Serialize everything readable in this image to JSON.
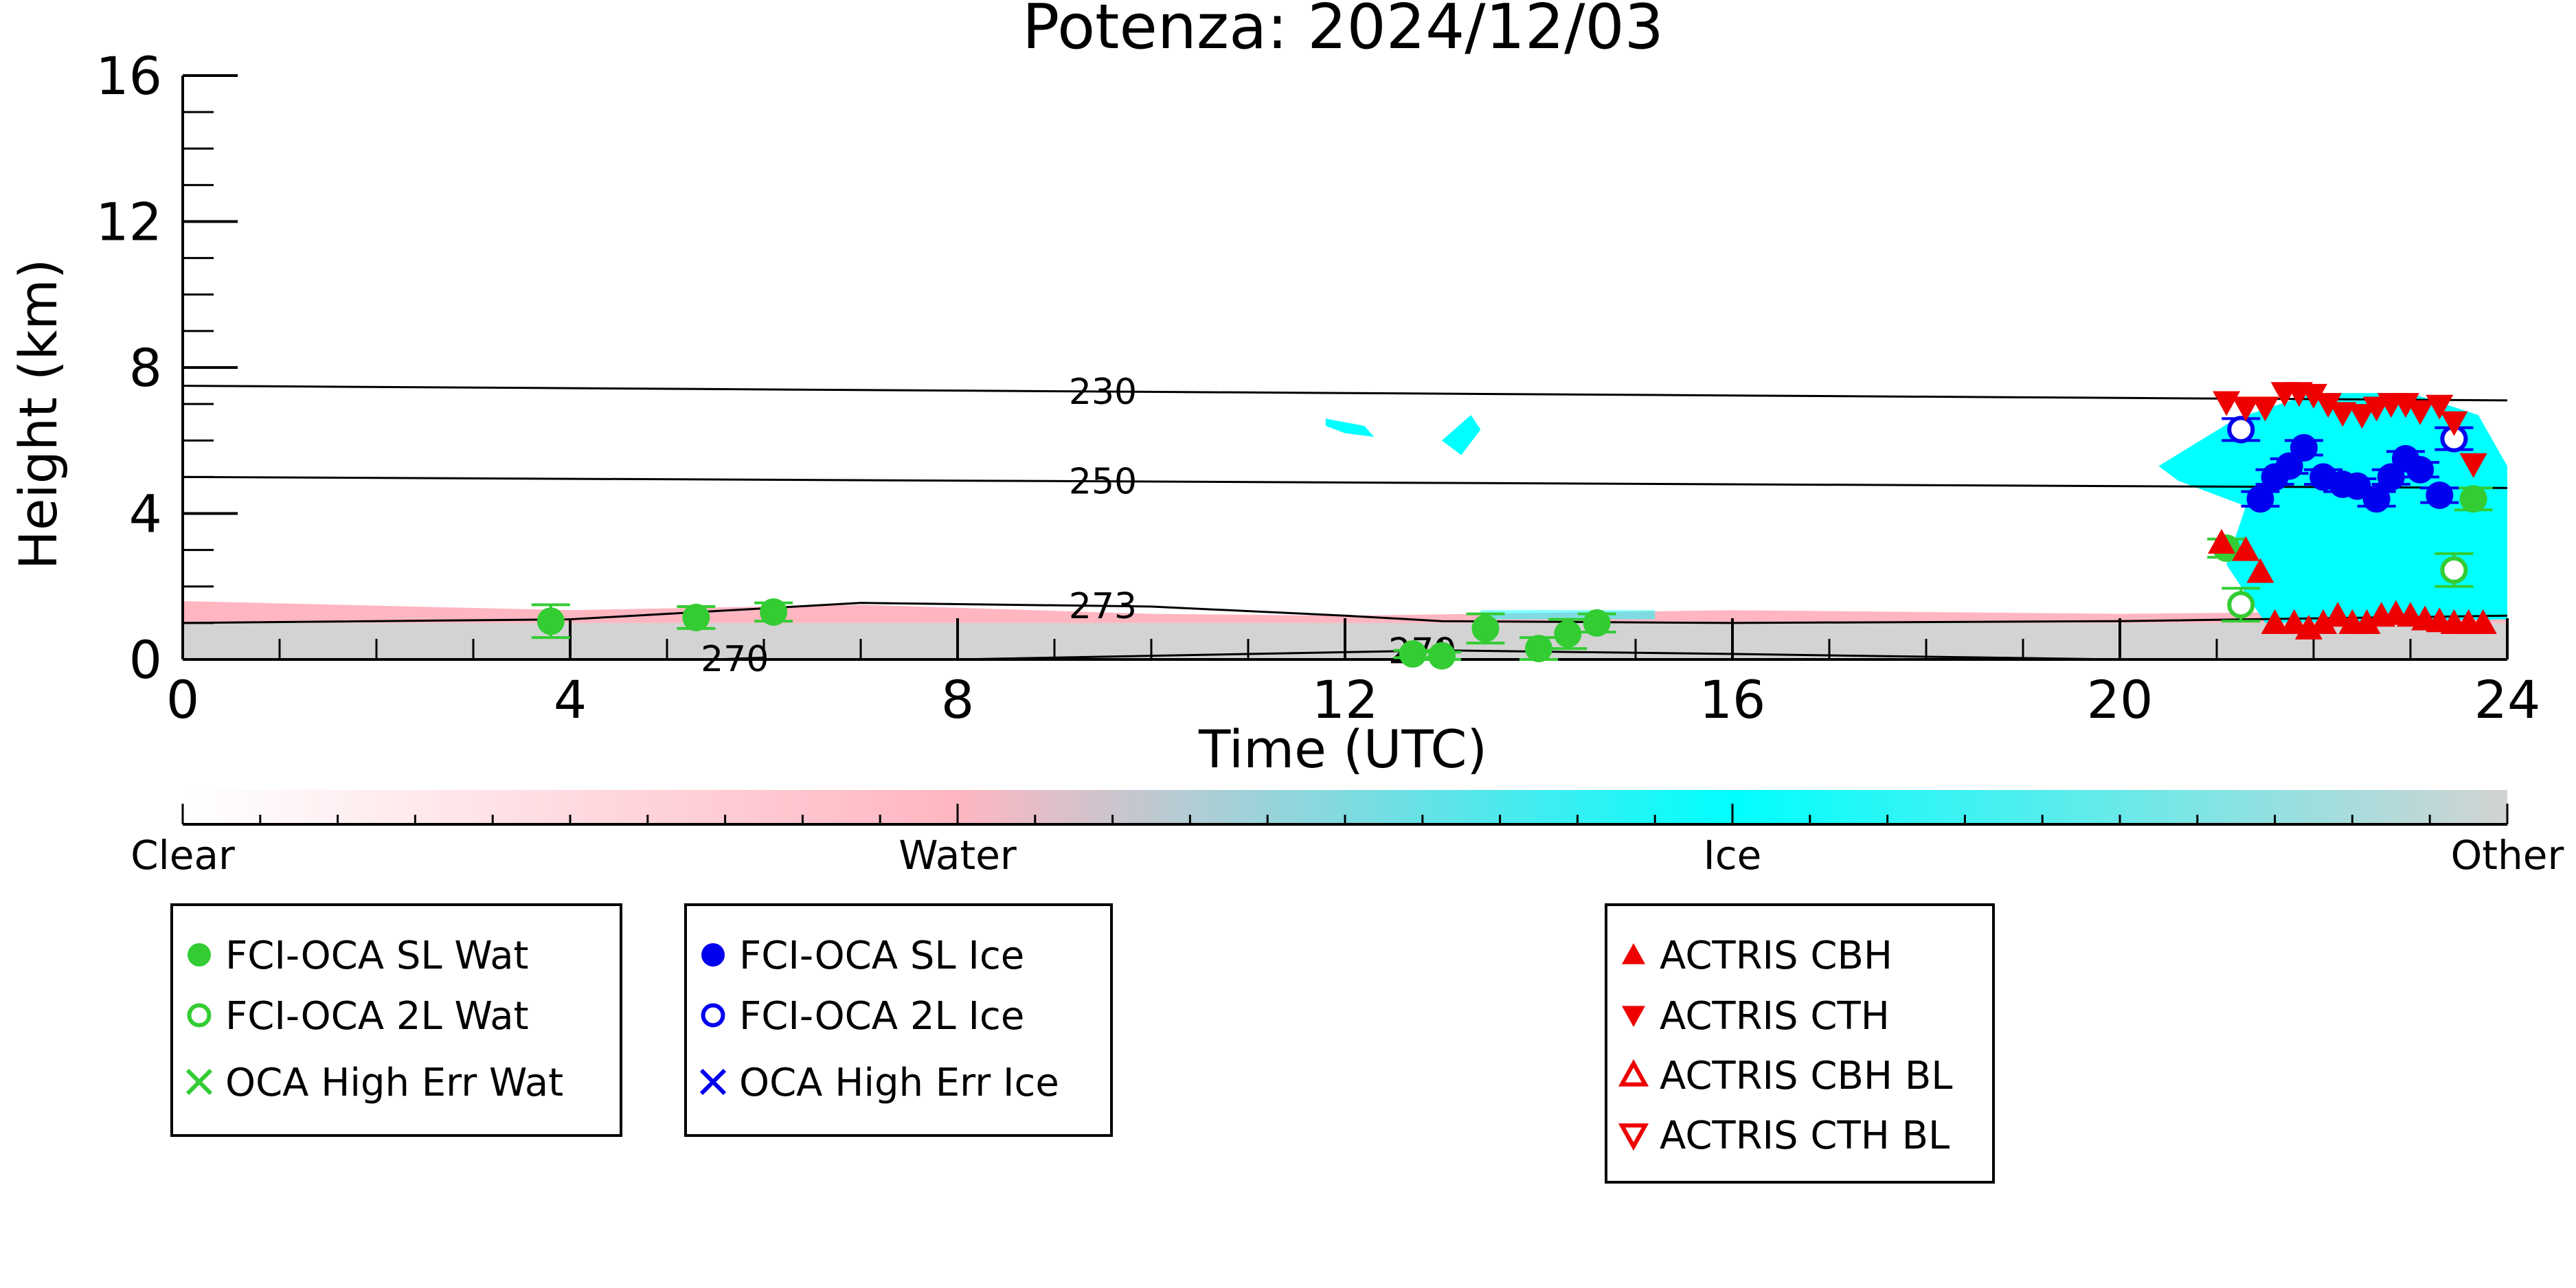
{
  "chart_data": {
    "type": "scatter",
    "title": "Potenza: 2024/12/03",
    "xlabel": "Time (UTC)",
    "ylabel": "Height (km)",
    "xlim": [
      0,
      24
    ],
    "ylim": [
      0,
      16
    ],
    "x_ticks": [
      0,
      4,
      8,
      12,
      16,
      20,
      24
    ],
    "x_tick_labels": [
      "0",
      "4",
      "8",
      "12",
      "16",
      "20",
      "24"
    ],
    "y_ticks": [
      0,
      4,
      8,
      12,
      16
    ],
    "y_tick_labels": [
      "0",
      "4",
      "8",
      "12",
      "16"
    ],
    "isotherms": [
      {
        "label": "230",
        "x": [
          0,
          24
        ],
        "y": [
          7.5,
          7.1
        ],
        "label_x": 9.5
      },
      {
        "label": "250",
        "x": [
          0,
          24
        ],
        "y": [
          5.0,
          4.7
        ],
        "label_x": 9.5
      },
      {
        "label": "273",
        "x": [
          0,
          4,
          7,
          10,
          12,
          13,
          16,
          20,
          24
        ],
        "y": [
          1.0,
          1.1,
          1.55,
          1.45,
          1.2,
          1.05,
          1.0,
          1.05,
          1.2
        ],
        "label_x": 9.5
      },
      {
        "label": "270",
        "x": [
          5.5,
          6.0
        ],
        "y": [
          0.0,
          0.05
        ],
        "label_x": 5.7
      },
      {
        "label": "279",
        "x": [
          8,
          12,
          13,
          16,
          20
        ],
        "y": [
          0.0,
          0.2,
          0.25,
          0.15,
          0.0
        ],
        "label_x": 12.8
      }
    ],
    "colorbar": {
      "labels": [
        "Clear",
        "Water",
        "Ice",
        "Other"
      ],
      "colors": [
        "#ffffff",
        "#ffb6c1",
        "#00ffff",
        "#d3d3d3"
      ]
    },
    "series": [
      {
        "name": "FCI-OCA SL Wat",
        "marker": "filled-circle",
        "color": "#33cc33",
        "points": [
          {
            "x": 3.8,
            "y": 1.05,
            "err": 0.45
          },
          {
            "x": 5.3,
            "y": 1.15,
            "err": 0.3
          },
          {
            "x": 6.1,
            "y": 1.3,
            "err": 0.25
          },
          {
            "x": 12.7,
            "y": 0.15,
            "err": 0.1
          },
          {
            "x": 13.0,
            "y": 0.1,
            "err": 0.1
          },
          {
            "x": 13.45,
            "y": 0.85,
            "err": 0.4
          },
          {
            "x": 14.0,
            "y": 0.3,
            "err": 0.3
          },
          {
            "x": 14.3,
            "y": 0.7,
            "err": 0.4
          },
          {
            "x": 14.6,
            "y": 1.0,
            "err": 0.25
          },
          {
            "x": 21.1,
            "y": 3.05,
            "err": 0.25
          },
          {
            "x": 23.65,
            "y": 4.4,
            "err": 0.3
          }
        ]
      },
      {
        "name": "FCI-OCA 2L Wat",
        "marker": "open-circle",
        "color": "#33cc33",
        "points": [
          {
            "x": 21.25,
            "y": 1.5,
            "err": 0.45
          },
          {
            "x": 23.45,
            "y": 2.45,
            "err": 0.45
          }
        ]
      },
      {
        "name": "OCA High Err Wat",
        "marker": "x",
        "color": "#33cc33",
        "points": []
      },
      {
        "name": "FCI-OCA SL Ice",
        "marker": "filled-circle",
        "color": "#0000ee",
        "points": [
          {
            "x": 21.45,
            "y": 4.4,
            "err": 0.2
          },
          {
            "x": 21.6,
            "y": 5.0,
            "err": 0.2
          },
          {
            "x": 21.75,
            "y": 5.3,
            "err": 0.2
          },
          {
            "x": 21.9,
            "y": 5.8,
            "err": 0.2
          },
          {
            "x": 22.1,
            "y": 5.0,
            "err": 0.2
          },
          {
            "x": 22.3,
            "y": 4.8,
            "err": 0.2
          },
          {
            "x": 22.45,
            "y": 4.75,
            "err": 0.2
          },
          {
            "x": 22.65,
            "y": 4.4,
            "err": 0.2
          },
          {
            "x": 22.8,
            "y": 5.0,
            "err": 0.2
          },
          {
            "x": 22.95,
            "y": 5.5,
            "err": 0.2
          },
          {
            "x": 23.1,
            "y": 5.2,
            "err": 0.2
          },
          {
            "x": 23.3,
            "y": 4.5,
            "err": 0.2
          }
        ]
      },
      {
        "name": "FCI-OCA 2L Ice",
        "marker": "open-circle",
        "color": "#0000ee",
        "points": [
          {
            "x": 21.25,
            "y": 6.3,
            "err": 0.3
          },
          {
            "x": 23.45,
            "y": 6.05,
            "err": 0.3
          }
        ]
      },
      {
        "name": "OCA High Err Ice",
        "marker": "x",
        "color": "#0000ee",
        "points": []
      },
      {
        "name": "ACTRIS CBH",
        "marker": "triangle-up",
        "color": "#ee0000",
        "points": [
          {
            "x": 21.05,
            "y": 3.2
          },
          {
            "x": 21.3,
            "y": 3.0
          },
          {
            "x": 21.45,
            "y": 2.4
          },
          {
            "x": 21.6,
            "y": 1.0
          },
          {
            "x": 21.8,
            "y": 1.0
          },
          {
            "x": 21.95,
            "y": 0.85
          },
          {
            "x": 22.1,
            "y": 1.0
          },
          {
            "x": 22.25,
            "y": 1.2
          },
          {
            "x": 22.4,
            "y": 1.0
          },
          {
            "x": 22.55,
            "y": 1.0
          },
          {
            "x": 22.7,
            "y": 1.2
          },
          {
            "x": 22.85,
            "y": 1.25
          },
          {
            "x": 23.0,
            "y": 1.2
          },
          {
            "x": 23.15,
            "y": 1.1
          },
          {
            "x": 23.3,
            "y": 1.05
          },
          {
            "x": 23.45,
            "y": 1.0
          },
          {
            "x": 23.6,
            "y": 1.0
          },
          {
            "x": 23.75,
            "y": 1.0
          }
        ]
      },
      {
        "name": "ACTRIS CTH",
        "marker": "triangle-down",
        "color": "#ee0000",
        "points": [
          {
            "x": 21.1,
            "y": 7.05
          },
          {
            "x": 21.3,
            "y": 6.9
          },
          {
            "x": 21.5,
            "y": 6.9
          },
          {
            "x": 21.7,
            "y": 7.3
          },
          {
            "x": 21.85,
            "y": 7.3
          },
          {
            "x": 22.0,
            "y": 7.25
          },
          {
            "x": 22.15,
            "y": 7.0
          },
          {
            "x": 22.3,
            "y": 6.75
          },
          {
            "x": 22.5,
            "y": 6.7
          },
          {
            "x": 22.65,
            "y": 6.9
          },
          {
            "x": 22.8,
            "y": 7.0
          },
          {
            "x": 22.95,
            "y": 7.0
          },
          {
            "x": 23.1,
            "y": 6.8
          },
          {
            "x": 23.3,
            "y": 6.95
          },
          {
            "x": 23.45,
            "y": 6.5
          },
          {
            "x": 23.65,
            "y": 5.35
          }
        ]
      },
      {
        "name": "ACTRIS CBH BL",
        "marker": "open-triangle-up",
        "color": "#ee0000",
        "points": []
      },
      {
        "name": "ACTRIS CTH BL",
        "marker": "open-triangle-down",
        "color": "#ee0000",
        "points": []
      }
    ]
  }
}
